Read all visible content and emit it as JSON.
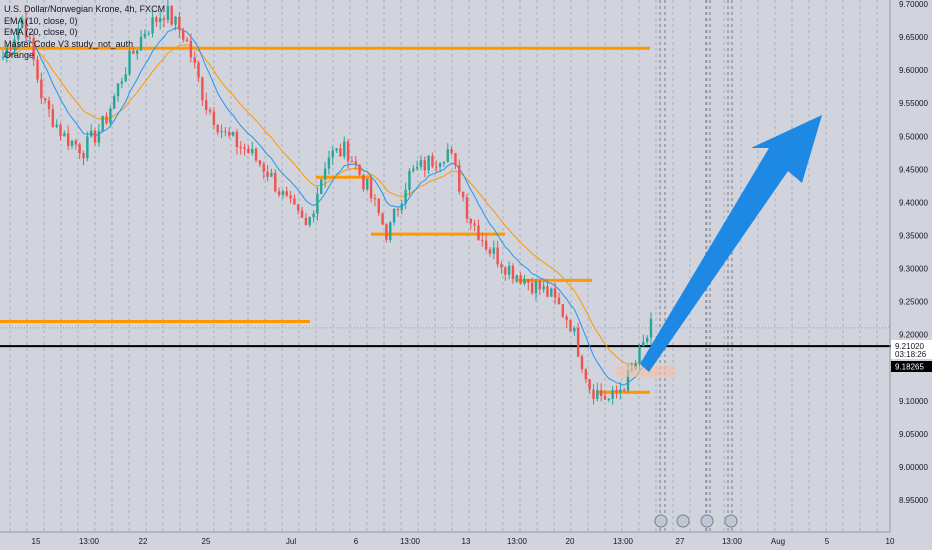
{
  "legend": {
    "symbol": "U.S. Dollar/Norwegian Krone, 4h, FXCM",
    "line2": "EMA (10, close, 0)",
    "line3": "EMA (20, close, 0)",
    "line4": "Master Code V3 study_not_auth",
    "line5": "Orange"
  },
  "chart_data": {
    "type": "candlestick",
    "ylim": [
      8.95,
      9.7
    ],
    "y_ticks": [
      "9.70000",
      "9.65000",
      "9.60000",
      "9.55000",
      "9.50000",
      "9.45000",
      "9.40000",
      "9.35000",
      "9.30000",
      "9.25000",
      "9.20000",
      "9.15000",
      "9.10000",
      "9.05000",
      "9.00000",
      "8.95000"
    ],
    "x_ticks": [
      "15",
      "13:00",
      "22",
      "25",
      "Jul",
      "6",
      "13:00",
      "13",
      "13:00",
      "20",
      "13:00",
      "27",
      "13:00",
      "Aug",
      "5",
      "10"
    ],
    "candles_sample_close": [
      9.62,
      9.68,
      9.55,
      9.5,
      9.48,
      9.52,
      9.6,
      9.66,
      9.69,
      9.65,
      9.55,
      9.5,
      9.48,
      9.45,
      9.4,
      9.36,
      9.47,
      9.48,
      9.42,
      9.35,
      9.44,
      9.46,
      9.48,
      9.38,
      9.33,
      9.3,
      9.28,
      9.26,
      9.22,
      9.12,
      9.1,
      9.14,
      9.21
    ],
    "horizontal_levels": [
      {
        "price": 9.633,
        "color": "#ff9800"
      },
      {
        "price": 9.438,
        "color": "#ff9800"
      },
      {
        "price": 9.352,
        "color": "#ff9800"
      },
      {
        "price": 9.282,
        "color": "#ff9800"
      },
      {
        "price": 9.22,
        "color": "#ff9800"
      },
      {
        "price": 9.113,
        "color": "#ff9800"
      },
      {
        "price": 9.18265,
        "color": "#000000"
      }
    ],
    "last_price": "9.21020",
    "countdown": "03:18:26",
    "level_price": "9.18265",
    "colors": {
      "up": "#26a69a",
      "down": "#ef5350",
      "ema_fast": "#2196f3",
      "ema_slow": "#ff9800",
      "arrow": "#2196f3"
    }
  }
}
